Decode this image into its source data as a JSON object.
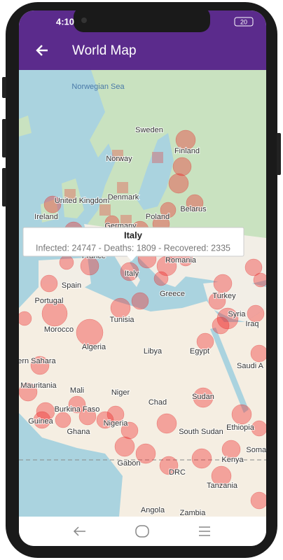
{
  "status_bar": {
    "time": "4:10",
    "battery": "20"
  },
  "app_bar": {
    "title": "World Map"
  },
  "map": {
    "sea_label": "Norwegian Sea",
    "labels": [
      "Sweden",
      "Finland",
      "Norway",
      "United Kingdom",
      "Ireland",
      "Denmark",
      "Germany",
      "Poland",
      "Belarus",
      "France",
      "Romania",
      "Spain",
      "Portugal",
      "Italy",
      "Greece",
      "Turkey",
      "Tunisia",
      "Morocco",
      "Syria",
      "Iraq",
      "Algeria",
      "Libya",
      "Egypt",
      "Western Sahara",
      "Saudi A",
      "Mauritania",
      "Mali",
      "Niger",
      "Chad",
      "Sudan",
      "Burkina Faso",
      "Guinea",
      "Ghana",
      "Nigeria",
      "South Sudan",
      "Ethiopia",
      "Somal",
      "Gabon",
      "DRC",
      "Kenya",
      "Tanzania",
      "Angola",
      "Zambia"
    ]
  },
  "tooltip": {
    "title": "Italy",
    "text": "Infected: 24747 - Deaths: 1809 - Recovered: 2335"
  }
}
